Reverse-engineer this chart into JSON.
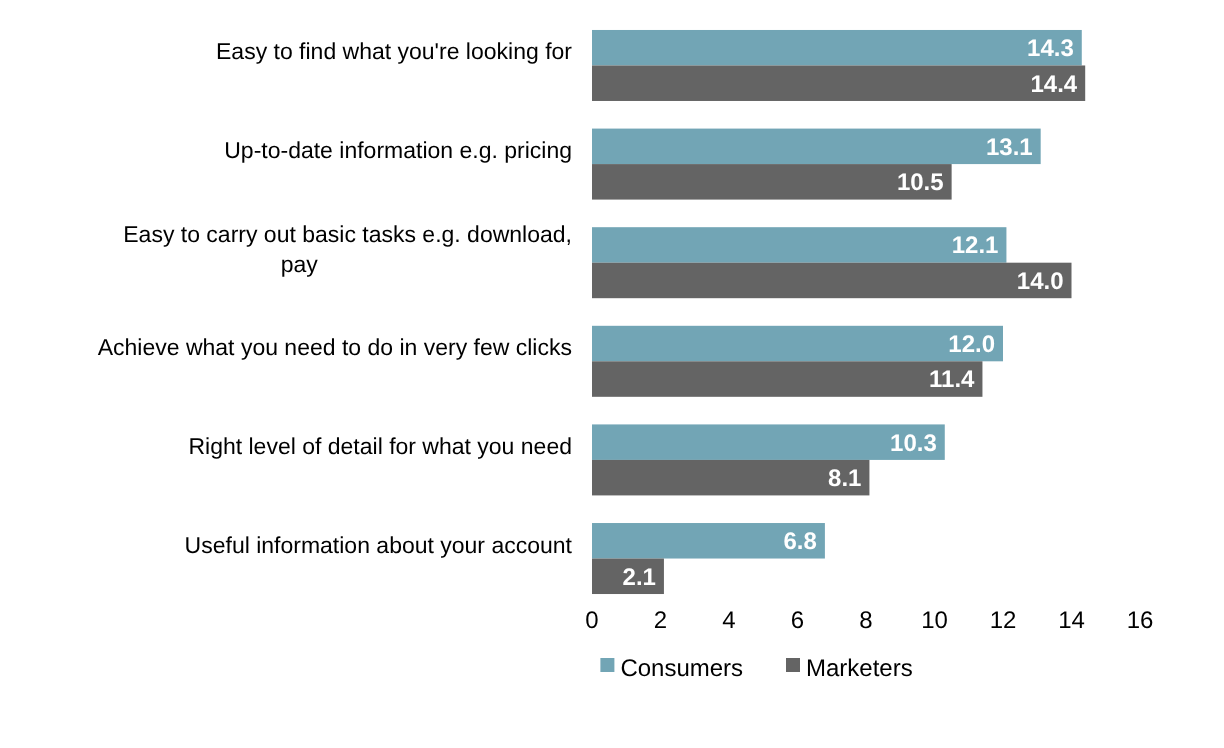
{
  "chart_data": {
    "type": "bar",
    "orientation": "horizontal",
    "categories": [
      "Easy to find what you're looking for",
      "Up-to-date information e.g. pricing",
      "Easy to carry out basic tasks e.g. download, pay",
      "Achieve what you need to do in very few clicks",
      "Right level of detail for what you need",
      "Useful information about your account"
    ],
    "series": [
      {
        "name": "Consumers",
        "color": "#72a5b5",
        "values": [
          14.3,
          13.1,
          12.1,
          12.0,
          10.3,
          6.8
        ],
        "value_labels": [
          "14.3",
          "13.1",
          "12.1",
          "12.0",
          "10.3",
          "6.8"
        ]
      },
      {
        "name": "Marketers",
        "color": "#646464",
        "values": [
          14.4,
          10.5,
          14.0,
          11.4,
          8.1,
          2.1
        ],
        "value_labels": [
          "14.4",
          "10.5",
          "14.0",
          "11.4",
          "8.1",
          "2.1"
        ]
      }
    ],
    "xlim": [
      0,
      16
    ],
    "xticks": [
      0,
      2,
      4,
      6,
      8,
      10,
      12,
      14,
      16
    ],
    "legend": "bottom",
    "grid": false
  }
}
